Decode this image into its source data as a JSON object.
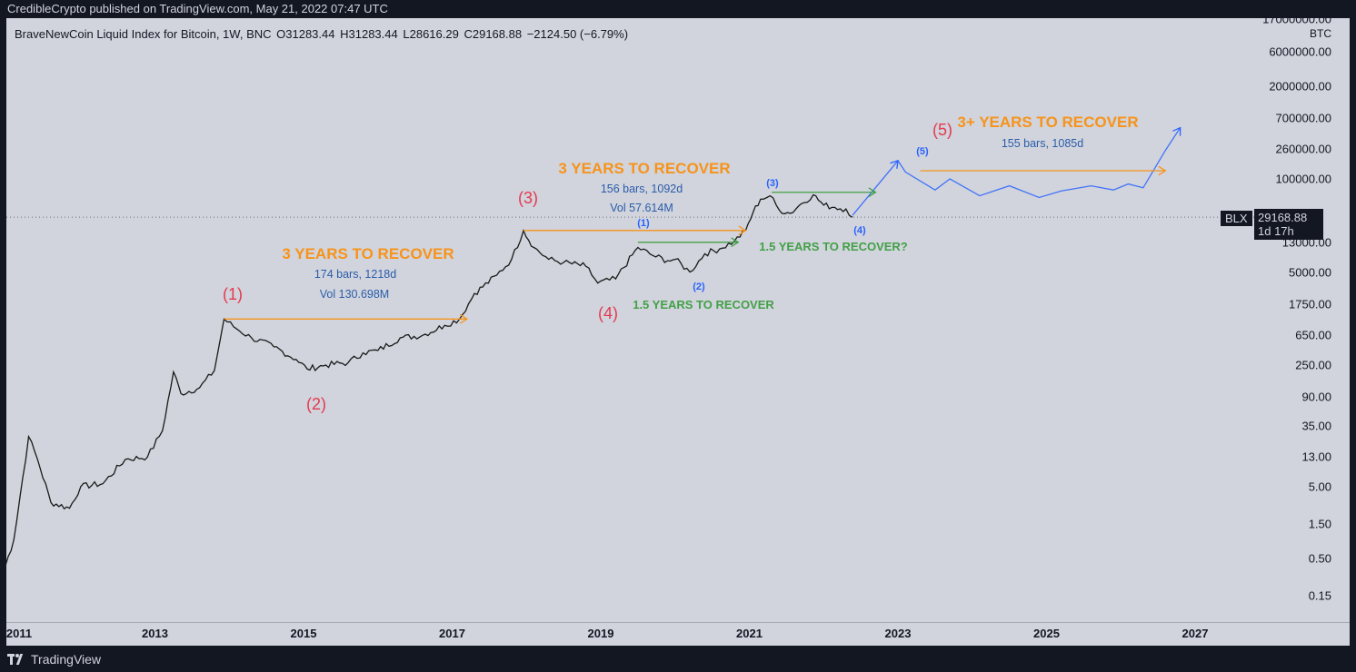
{
  "header": {
    "publisher_line": "CredibleCrypto published on TradingView.com, May 21, 2022 07:47 UTC"
  },
  "legend": {
    "symbol_line": "BraveNewCoin Liquid Index for Bitcoin, 1W, BNC",
    "open_label": "O",
    "open": "31283.44",
    "high_label": "H",
    "high": "31283.44",
    "low_label": "L",
    "low": "28616.29",
    "close_label": "C",
    "close": "29168.88",
    "change": "−2124.50 (−6.79%)"
  },
  "price_scale": {
    "unit": "BTC",
    "ticks": [
      "17000000.00",
      "6000000.00",
      "2000000.00",
      "700000.00",
      "260000.00",
      "100000.00",
      "13000.00",
      "5000.00",
      "1750.00",
      "650.00",
      "250.00",
      "90.00",
      "35.00",
      "13.00",
      "5.00",
      "1.50",
      "0.50",
      "0.15"
    ],
    "last_price_label": "29168.88",
    "countdown": "1d 17h",
    "symbol_tag": "BLX"
  },
  "time_scale": {
    "ticks": [
      "2011",
      "2013",
      "2015",
      "2017",
      "2019",
      "2021",
      "2023",
      "2025",
      "2027"
    ]
  },
  "annotations": {
    "recover1_title": "3 YEARS TO RECOVER",
    "recover1_bars": "174 bars, 1218d",
    "recover1_vol": "Vol 130.698M",
    "recover2_title": "3 YEARS TO RECOVER",
    "recover2_bars": "156 bars, 1092d",
    "recover2_vol": "Vol 57.614M",
    "recover3_title": "3+ YEARS TO RECOVER",
    "recover3_bars": "155 bars, 1085d",
    "green1": "1.5 YEARS TO RECOVER",
    "green2": "1.5 YEARS TO RECOVER?",
    "wave_red": [
      "(1)",
      "(2)",
      "(3)",
      "(4)",
      "(5)"
    ],
    "wave_blue": [
      "(1)",
      "(2)",
      "(3)",
      "(4)",
      "(5)"
    ]
  },
  "colors": {
    "background": "#131722",
    "pane": "#d1d4dc",
    "orange": "#f7931a",
    "blue": "#2962ff",
    "green": "#43a047",
    "red": "#e53950",
    "price": "#131722"
  },
  "footer": {
    "brand": "TradingView"
  },
  "chart_data": {
    "type": "line",
    "title": "BraveNewCoin Liquid Index for Bitcoin, 1W, BNC",
    "xlabel": "",
    "ylabel": "BTC",
    "y_scale": "log",
    "ylim": [
      0.08,
      20000000
    ],
    "xlim": [
      "2011-01",
      "2027-08"
    ],
    "grid": false,
    "x": [
      2010.95,
      2011.1,
      2011.3,
      2011.42,
      2011.6,
      2011.85,
      2012.0,
      2012.3,
      2012.6,
      2012.9,
      2013.1,
      2013.25,
      2013.35,
      2013.6,
      2013.8,
      2013.93,
      2014.1,
      2014.3,
      2014.6,
      2014.9,
      2015.05,
      2015.3,
      2015.6,
      2015.8,
      2016.0,
      2016.3,
      2016.6,
      2016.9,
      2017.1,
      2017.3,
      2017.6,
      2017.8,
      2017.96,
      2018.1,
      2018.3,
      2018.5,
      2018.8,
      2018.96,
      2019.2,
      2019.5,
      2019.7,
      2019.9,
      2020.0,
      2020.2,
      2020.4,
      2020.6,
      2020.8,
      2020.95,
      2021.05,
      2021.15,
      2021.28,
      2021.4,
      2021.55,
      2021.7,
      2021.86,
      2022.0,
      2022.15,
      2022.3,
      2022.39
    ],
    "y": [
      0.3,
      0.9,
      25,
      12,
      3,
      2.5,
      5,
      5.5,
      12,
      13,
      30,
      200,
      100,
      120,
      210,
      1100,
      800,
      600,
      450,
      300,
      220,
      250,
      270,
      370,
      400,
      600,
      650,
      900,
      1100,
      2500,
      4500,
      7500,
      19000,
      11000,
      7500,
      6800,
      6000,
      3500,
      4000,
      11000,
      8500,
      7200,
      7500,
      5000,
      9000,
      10500,
      13500,
      19000,
      34000,
      52000,
      58000,
      37000,
      33000,
      45000,
      60000,
      43000,
      40000,
      38000,
      29168.88
    ],
    "series": [
      {
        "name": "BLX",
        "kind": "price"
      }
    ],
    "projection": {
      "x": [
        2022.39,
        2023.0,
        2023.1,
        2023.5,
        2023.7,
        2024.1,
        2024.5,
        2024.9,
        2025.2,
        2025.6,
        2025.9,
        2026.1,
        2026.3,
        2026.6,
        2026.8
      ],
      "y": [
        31000,
        180000,
        125000,
        70000,
        100000,
        58000,
        80000,
        55000,
        68000,
        80000,
        70000,
        85000,
        75000,
        250000,
        520000
      ]
    },
    "recovery_lines": [
      {
        "color": "orange",
        "x": [
          2013.93,
          2017.2
        ],
        "y": 1100
      },
      {
        "color": "orange",
        "x": [
          2017.96,
          2020.95
        ],
        "y": 19000
      },
      {
        "color": "orange",
        "x": [
          2023.3,
          2026.6
        ],
        "y": 130000
      },
      {
        "color": "green",
        "x": [
          2019.5,
          2020.85
        ],
        "y": 13000
      },
      {
        "color": "green",
        "x": [
          2021.3,
          2022.7
        ],
        "y": 65000
      }
    ]
  }
}
